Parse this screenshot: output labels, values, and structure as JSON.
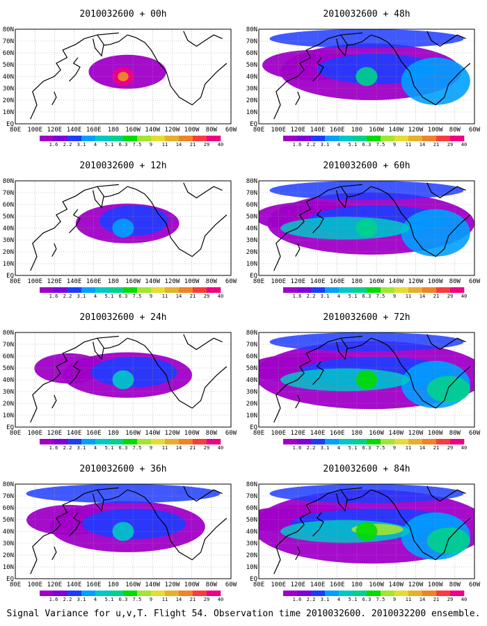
{
  "figure": {
    "footer": "Signal Variance for u,v,T. Flight 54. Observation time 2010032600. 2010032200 ensemble.",
    "lon_labels": [
      "80E",
      "100E",
      "120E",
      "140E",
      "160E",
      "180",
      "160W",
      "140W",
      "120W",
      "100W",
      "80W",
      "60W"
    ],
    "lat_labels": [
      "80N",
      "70N",
      "60N",
      "50N",
      "40N",
      "30N",
      "20N",
      "10N",
      "EQ"
    ],
    "colorbar": {
      "labels": [
        "1.6",
        "2.2",
        "3.1",
        "4",
        "5.1",
        "6.3",
        "7.5",
        "9",
        "11",
        "14",
        "21",
        "29",
        "40"
      ],
      "colors": [
        "#a000c8",
        "#7f00dc",
        "#1e3cff",
        "#00a0ff",
        "#00c8c8",
        "#00d28c",
        "#00dc00",
        "#a0e632",
        "#e6dc32",
        "#e6af2d",
        "#f08228",
        "#fa3c3c",
        "#f00082"
      ]
    },
    "panels": [
      {
        "title": "2010032600 + 00h",
        "intensity": 0
      },
      {
        "title": "2010032600 + 48h",
        "intensity": 4
      },
      {
        "title": "2010032600 + 12h",
        "intensity": 1
      },
      {
        "title": "2010032600 + 60h",
        "intensity": 5
      },
      {
        "title": "2010032600 + 24h",
        "intensity": 2
      },
      {
        "title": "2010032600 + 72h",
        "intensity": 6
      },
      {
        "title": "2010032600 + 36h",
        "intensity": 3
      },
      {
        "title": "2010032600 + 84h",
        "intensity": 7
      }
    ]
  }
}
